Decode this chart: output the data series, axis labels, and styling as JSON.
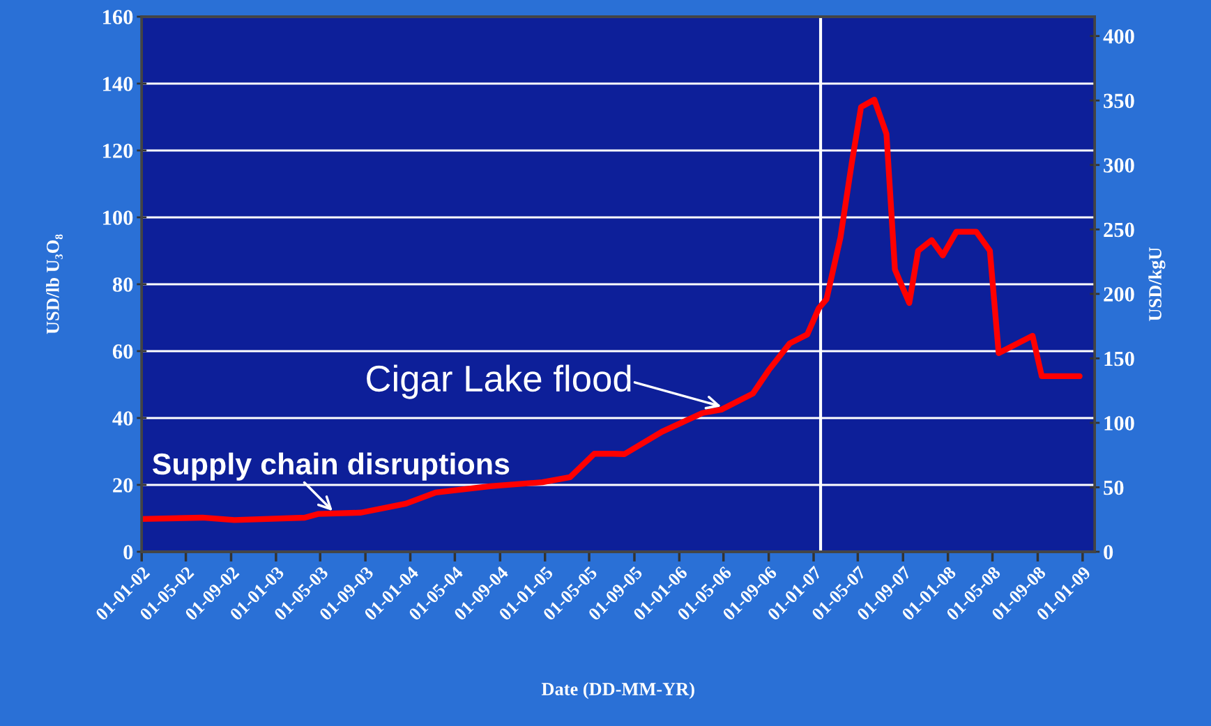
{
  "chart_data": {
    "type": "line",
    "xlabel": "Date (DD-MM-YR)",
    "ylabel": "USD/lb U₃O₈",
    "y2label": "USD/kgU",
    "series": [
      {
        "color": "#ff0000",
        "x": [
          "2002-01-01",
          "2002-06-15",
          "2002-09-10",
          "2003-03-20",
          "2003-04-25",
          "2003-08-20",
          "2003-12-20",
          "2004-03-10",
          "2004-08-05",
          "2004-12-25",
          "2005-03-10",
          "2005-05-15",
          "2005-07-05",
          "2005-08-05",
          "2005-11-15",
          "2006-03-05",
          "2006-04-25",
          "2006-07-20",
          "2006-09-01",
          "2006-10-28",
          "2006-12-15",
          "2007-01-15",
          "2007-02-05",
          "2007-03-15",
          "2007-04-15",
          "2007-05-10",
          "2007-06-15",
          "2007-07-18",
          "2007-08-10",
          "2007-09-18",
          "2007-10-12",
          "2007-11-18",
          "2007-12-18",
          "2008-01-24",
          "2008-03-18",
          "2008-04-24",
          "2008-05-18",
          "2008-08-18",
          "2008-09-12",
          "2008-12-24"
        ],
        "values": [
          9.8,
          10.2,
          9.5,
          10.2,
          11.3,
          11.7,
          14.4,
          17.7,
          19.6,
          20.8,
          22.3,
          29.3,
          29.3,
          29.2,
          35.9,
          41.5,
          42.5,
          47.3,
          54.3,
          62.3,
          65,
          72.8,
          75.5,
          94,
          116.5,
          133,
          135.2,
          124.9,
          84.4,
          74.4,
          90,
          93.2,
          88.6,
          95.7,
          95.7,
          90,
          59.4,
          64.6,
          52.5,
          52.5
        ]
      }
    ],
    "xlim": [
      "2002-01-01",
      "2009-02-03"
    ],
    "xticks": [
      {
        "value": "2002-01-01",
        "label": "01-01-02"
      },
      {
        "value": "2002-05-01",
        "label": "01-05-02"
      },
      {
        "value": "2002-09-01",
        "label": "01-09-02"
      },
      {
        "value": "2003-01-01",
        "label": "01-01-03"
      },
      {
        "value": "2003-05-01",
        "label": "01-05-03"
      },
      {
        "value": "2003-09-01",
        "label": "01-09-03"
      },
      {
        "value": "2004-01-01",
        "label": "01-01-04"
      },
      {
        "value": "2004-05-01",
        "label": "01-05-04"
      },
      {
        "value": "2004-09-01",
        "label": "01-09-04"
      },
      {
        "value": "2005-01-01",
        "label": "01-01-05"
      },
      {
        "value": "2005-05-01",
        "label": "01-05-05"
      },
      {
        "value": "2005-09-01",
        "label": "01-09-05"
      },
      {
        "value": "2006-01-01",
        "label": "01-01-06"
      },
      {
        "value": "2006-05-01",
        "label": "01-05-06"
      },
      {
        "value": "2006-09-01",
        "label": "01-09-06"
      },
      {
        "value": "2007-01-01",
        "label": "01-01-07"
      },
      {
        "value": "2007-05-01",
        "label": "01-05-07"
      },
      {
        "value": "2007-09-01",
        "label": "01-09-07"
      },
      {
        "value": "2008-01-01",
        "label": "01-01-08"
      },
      {
        "value": "2008-05-01",
        "label": "01-05-08"
      },
      {
        "value": "2008-09-01",
        "label": "01-09-08"
      },
      {
        "value": "2009-01-01",
        "label": "01-01-09"
      }
    ],
    "ylim": [
      0,
      160
    ],
    "yticks": [
      0,
      20,
      40,
      60,
      80,
      100,
      120,
      140,
      160
    ],
    "y2lim": [
      0,
      415
    ],
    "y2ticks": [
      0,
      50,
      100,
      150,
      200,
      250,
      300,
      350,
      400
    ],
    "ref_lines": [
      {
        "axis": "x",
        "value": "2007-01-20",
        "color": "#ffffff"
      }
    ],
    "annotations": [
      {
        "text": "Supply chain disruptions",
        "x": "2003-06-15",
        "y": 11
      },
      {
        "text": "Cigar Lake flood",
        "x": "2006-05-10",
        "y": 43
      }
    ],
    "grid": "y",
    "legend": false,
    "marker": "none",
    "line_style": "solid"
  }
}
